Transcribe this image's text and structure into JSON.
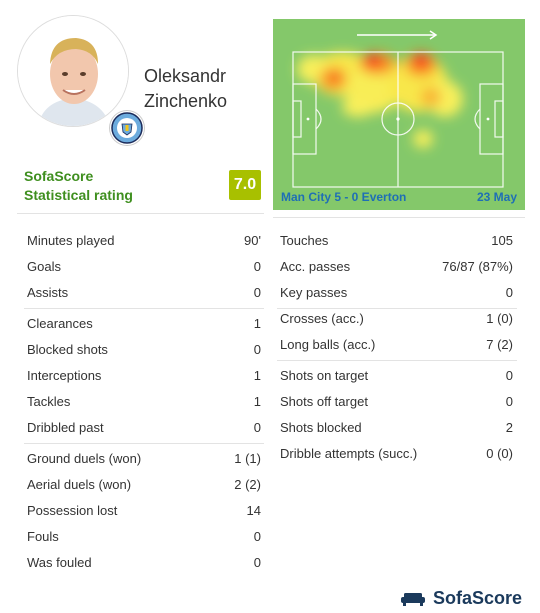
{
  "player": {
    "first_name": "Oleksandr",
    "last_name": "Zinchenko"
  },
  "rating": {
    "brand": "SofaScore",
    "subtitle": "Statistical rating",
    "value": "7.0",
    "color": "#a8c000"
  },
  "heatmap": {
    "match": "Man City 5 - 0 Everton",
    "date": "23 May",
    "direction": "right-arrow"
  },
  "left_stats": [
    [
      {
        "label": "Minutes played",
        "value": "90'"
      },
      {
        "label": "Goals",
        "value": "0"
      },
      {
        "label": "Assists",
        "value": "0"
      }
    ],
    [
      {
        "label": "Clearances",
        "value": "1"
      },
      {
        "label": "Blocked shots",
        "value": "0"
      },
      {
        "label": "Interceptions",
        "value": "1"
      },
      {
        "label": "Tackles",
        "value": "1"
      },
      {
        "label": "Dribbled past",
        "value": "0"
      }
    ],
    [
      {
        "label": "Ground duels (won)",
        "value": "1 (1)"
      },
      {
        "label": "Aerial duels (won)",
        "value": "2 (2)"
      },
      {
        "label": "Possession lost",
        "value": "14"
      },
      {
        "label": "Fouls",
        "value": "0"
      },
      {
        "label": "Was fouled",
        "value": "0"
      }
    ]
  ],
  "right_stats": [
    [
      {
        "label": "Touches",
        "value": "105"
      },
      {
        "label": "Acc. passes",
        "value": "76/87 (87%)"
      },
      {
        "label": "Key passes",
        "value": "0"
      }
    ],
    [
      {
        "label": "Crosses (acc.)",
        "value": "1 (0)"
      },
      {
        "label": "Long balls (acc.)",
        "value": "7 (2)"
      }
    ],
    [
      {
        "label": "Shots on target",
        "value": "0"
      },
      {
        "label": "Shots off target",
        "value": "0"
      },
      {
        "label": "Shots blocked",
        "value": "2"
      },
      {
        "label": "Dribble attempts (succ.)",
        "value": "0 (0)"
      }
    ]
  ],
  "footer": {
    "brand": "SofaScore",
    "icon": "sofa-icon"
  }
}
